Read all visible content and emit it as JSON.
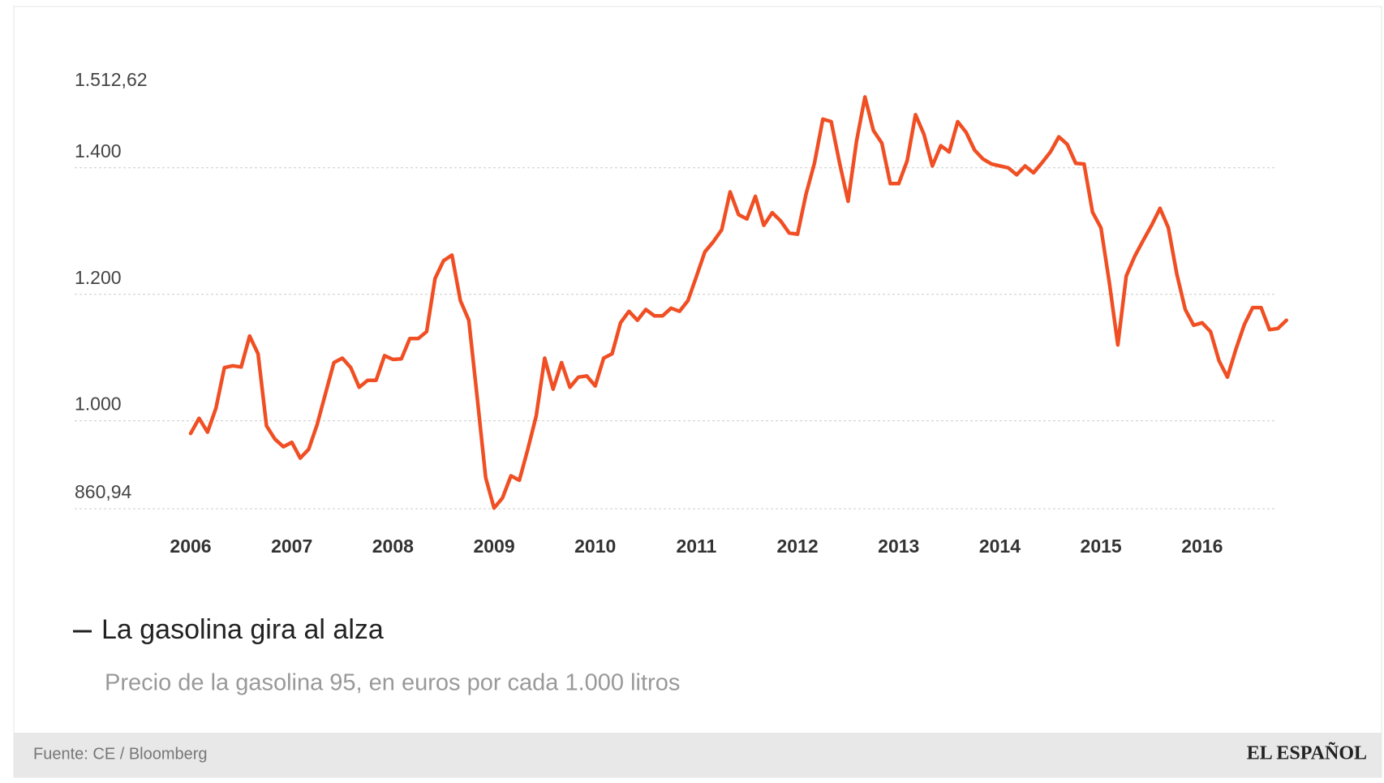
{
  "chart_data": {
    "type": "line",
    "title": "La gasolina gira al alza",
    "subtitle": "Precio de la gasolina 95, en euros por cada 1.000 litros",
    "categories": [
      "2006",
      null,
      null,
      null,
      null,
      null,
      null,
      null,
      null,
      null,
      null,
      null,
      "2007",
      null,
      null,
      null,
      null,
      null,
      null,
      null,
      null,
      null,
      null,
      null,
      "2008",
      null,
      null,
      null,
      null,
      null,
      null,
      null,
      null,
      null,
      null,
      null,
      "2009",
      null,
      null,
      null,
      null,
      null,
      null,
      null,
      null,
      null,
      null,
      null,
      "2010",
      null,
      null,
      null,
      null,
      null,
      null,
      null,
      null,
      null,
      null,
      null,
      "2011",
      null,
      null,
      null,
      null,
      null,
      null,
      null,
      null,
      null,
      null,
      null,
      "2012",
      null,
      null,
      null,
      null,
      null,
      null,
      null,
      null,
      null,
      null,
      null,
      "2013",
      null,
      null,
      null,
      null,
      null,
      null,
      null,
      null,
      null,
      null,
      null,
      "2014",
      null,
      null,
      null,
      null,
      null,
      null,
      null,
      null,
      null,
      null,
      null,
      "2015",
      null,
      null,
      null,
      null,
      null,
      null,
      null,
      null,
      null,
      null,
      null,
      "2016",
      null,
      null,
      null,
      null,
      null,
      null,
      null,
      null,
      null,
      null
    ],
    "values": [
      980,
      1004,
      982,
      1020,
      1084,
      1087,
      1085,
      1134,
      1106,
      992,
      971,
      959,
      966,
      941,
      955,
      994,
      1043,
      1092,
      1099,
      1084,
      1053,
      1064,
      1064,
      1103,
      1097,
      1098,
      1130,
      1130,
      1141,
      1225,
      1253,
      1262,
      1190,
      1159,
      1036,
      910,
      862,
      878,
      913,
      906,
      955,
      1008,
      1099,
      1050,
      1092,
      1053,
      1069,
      1071,
      1055,
      1099,
      1106,
      1155,
      1173,
      1159,
      1176,
      1166,
      1166,
      1178,
      1173,
      1190,
      1228,
      1267,
      1283,
      1302,
      1362,
      1326,
      1319,
      1355,
      1309,
      1329,
      1316,
      1297,
      1295,
      1358,
      1407,
      1477,
      1473,
      1407,
      1347,
      1442,
      1512,
      1459,
      1439,
      1375,
      1375,
      1411,
      1484,
      1453,
      1403,
      1435,
      1425,
      1473,
      1456,
      1428,
      1414,
      1406,
      1403,
      1400,
      1389,
      1403,
      1392,
      1408,
      1425,
      1449,
      1437,
      1407,
      1406,
      1330,
      1305,
      1218,
      1120,
      1229,
      1260,
      1285,
      1309,
      1336,
      1305,
      1232,
      1176,
      1151,
      1155,
      1141,
      1095,
      1069,
      1113,
      1152,
      1179,
      1179,
      1144,
      1146,
      1159
    ],
    "color": "#f04e23",
    "ylim": [
      860.94,
      1512.62
    ],
    "yticks": [
      {
        "value": 860.94,
        "label": "860,94"
      },
      {
        "value": 1000,
        "label": "1.000"
      },
      {
        "value": 1200,
        "label": "1.200"
      },
      {
        "value": 1400,
        "label": "1.400"
      },
      {
        "value": 1512.62,
        "label": "1.512,62"
      }
    ],
    "grid": true
  },
  "footer": {
    "source": "Fuente: CE / Bloomberg",
    "brand": "EL ESPAÑOL"
  }
}
